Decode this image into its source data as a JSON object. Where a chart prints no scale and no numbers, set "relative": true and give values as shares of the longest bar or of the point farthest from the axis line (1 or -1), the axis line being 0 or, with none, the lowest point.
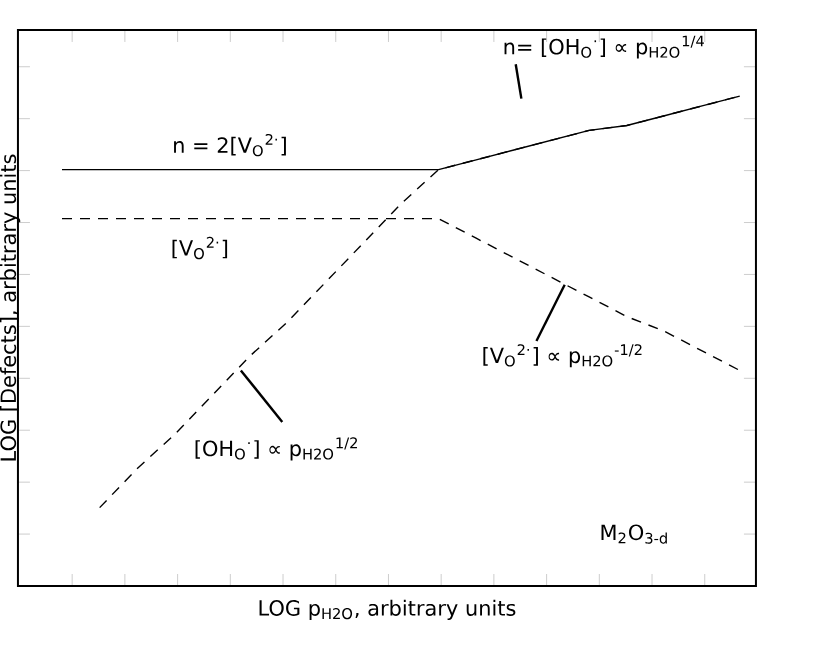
{
  "chart_data": {
    "type": "line",
    "relative": true,
    "xlabel": "LOG p$_{H2O}$, arbitrary units",
    "ylabel": "LOG [Defects], arbitrary units",
    "categories": [
      null,
      null,
      null,
      null,
      null,
      null,
      null,
      null,
      null,
      null,
      null,
      null,
      null,
      null,
      null,
      null,
      null,
      null,
      null
    ],
    "series": [
      {
        "color": "#000000",
        "line_style": "solid",
        "values": [
          0.85,
          0.85,
          0.85,
          0.85,
          0.85,
          0.85,
          0.85,
          0.85,
          0.85,
          0.85,
          0.85,
          0.87,
          0.89,
          0.91,
          0.93,
          0.94,
          0.96,
          0.98,
          1.0
        ]
      },
      {
        "color": "#000000",
        "line_style": "dashed",
        "values": [
          0.75,
          0.75,
          0.75,
          0.75,
          0.75,
          0.75,
          0.75,
          0.75,
          0.75,
          0.75,
          0.75,
          0.71,
          0.67,
          0.63,
          0.59,
          0.55,
          0.52,
          0.48,
          0.44
        ]
      },
      {
        "color": "#000000",
        "line_style": "dashed",
        "values": [
          null,
          0.16,
          0.24,
          0.31,
          0.39,
          0.47,
          0.54,
          0.62,
          0.7,
          0.78,
          0.85,
          0.87,
          0.89,
          0.91,
          0.93,
          0.94,
          0.96,
          0.98,
          1.0
        ]
      }
    ],
    "marker": "none",
    "grid": false,
    "tick_labels": false,
    "annotations": [
      "n= [OH$_{O}$$^{·}$] ∝ p$_{H2O}$$^{1/4}$",
      "n = 2[V$_{O}$$^{2·}$]",
      "[V$_{O}$$^{2·}$]",
      "[V$_{O}$$^{2·}$] ∝ p$_{H2O}$$^{-1/2}$",
      "[OH$_{O}$$^{·}$] ∝ p$_{H2O}$$^{1/2}$",
      "M$_{2}$O$_{3-d}$"
    ]
  }
}
